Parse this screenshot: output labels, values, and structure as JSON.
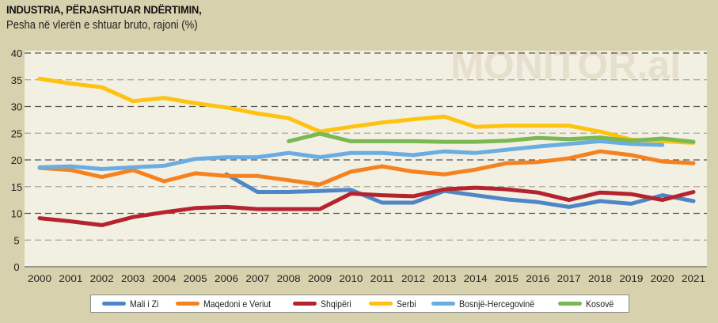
{
  "chart_data": {
    "type": "line",
    "title": "INDUSTRIA, PËRJASHTUAR NDËRTIMIN,",
    "subtitle": "Pesha në vlerën e shtuar bruto, rajoni (%)",
    "watermark": "MONITOR.al",
    "xlabel": "",
    "ylabel": "",
    "ylim": [
      0,
      40
    ],
    "yticks": [
      "0",
      "5",
      "10",
      "15",
      "20",
      "25",
      "30",
      "35",
      "40"
    ],
    "x": [
      "2000",
      "2001",
      "2002",
      "2003",
      "2004",
      "2005",
      "2006",
      "2007",
      "2008",
      "2009",
      "2010",
      "2011",
      "2012",
      "2013",
      "2014",
      "2015",
      "2016",
      "2017",
      "2018",
      "2019",
      "2020",
      "2021"
    ],
    "grid": "dashed horizontal",
    "legend_position": "bottom",
    "series": [
      {
        "name": "Mali i Zi",
        "color": "#4f86c6",
        "values": [
          null,
          null,
          null,
          null,
          null,
          null,
          17.3,
          14.0,
          14.0,
          14.2,
          14.4,
          12.0,
          12.0,
          14.2,
          13.4,
          12.6,
          12.1,
          11.2,
          12.3,
          11.8,
          13.4,
          12.3
        ]
      },
      {
        "name": "Maqedoni e Veriut",
        "color": "#f5821f",
        "values": [
          18.5,
          18.1,
          16.8,
          18.1,
          16.0,
          17.5,
          17.0,
          17.0,
          16.2,
          15.4,
          17.8,
          18.8,
          17.8,
          17.3,
          18.2,
          19.4,
          19.6,
          20.3,
          21.6,
          20.9,
          19.7,
          19.4
        ]
      },
      {
        "name": "Shqipëri",
        "color": "#b5232f",
        "values": [
          9.1,
          8.5,
          7.8,
          9.3,
          10.2,
          11.0,
          11.2,
          10.8,
          10.8,
          10.8,
          13.7,
          13.4,
          13.2,
          14.5,
          14.8,
          14.5,
          13.9,
          12.5,
          13.9,
          13.6,
          12.5,
          14.0
        ]
      },
      {
        "name": "Serbi",
        "color": "#ffc20e",
        "values": [
          35.2,
          34.3,
          33.6,
          31.0,
          31.6,
          30.6,
          29.8,
          28.7,
          27.8,
          25.3,
          26.2,
          27.0,
          27.6,
          28.1,
          26.2,
          26.4,
          26.4,
          26.4,
          25.3,
          23.8,
          23.5,
          23.2
        ]
      },
      {
        "name": "Bosnjë-Hercegovinë",
        "color": "#6aade0",
        "values": [
          18.6,
          18.8,
          18.3,
          18.6,
          18.9,
          20.2,
          20.5,
          20.5,
          21.3,
          20.5,
          21.3,
          21.3,
          20.9,
          21.6,
          21.3,
          21.9,
          22.5,
          23.0,
          23.5,
          23.0,
          22.8,
          null
        ]
      },
      {
        "name": "Kosovë",
        "color": "#7ab852",
        "values": [
          null,
          null,
          null,
          null,
          null,
          null,
          null,
          null,
          23.5,
          24.9,
          23.5,
          23.5,
          23.5,
          23.4,
          23.4,
          23.6,
          24.1,
          23.9,
          24.2,
          23.6,
          24.0,
          23.4
        ]
      }
    ]
  }
}
